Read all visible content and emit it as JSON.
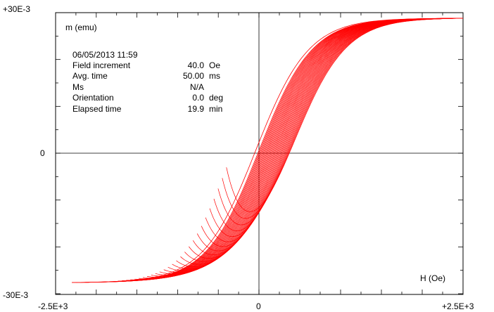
{
  "chart_data": {
    "type": "line",
    "title": "",
    "xlabel": "H (Oe)",
    "ylabel": "m (emu)",
    "xlim": [
      -2500,
      2500
    ],
    "ylim": [
      -0.03,
      0.03
    ],
    "x_tick_labels": [
      "-2.5E+3",
      "0",
      "+2.5E+3"
    ],
    "y_tick_labels": [
      "+30E-3",
      "0",
      "-30E-3"
    ],
    "grid": false,
    "color": "#ff0000",
    "loop": {
      "field_extent": [
        -2300,
        2500
      ],
      "moment_extent": [
        -0.0276,
        0.0288
      ],
      "coercivity_range": [
        0,
        400
      ],
      "remanence_range": [
        0,
        0.011
      ],
      "curve_count": 38
    },
    "info_rows": [
      {
        "label": "06/05/2013  11:59",
        "value": "",
        "unit": ""
      },
      {
        "label": "Field increment",
        "value": "40.0",
        "unit": "Oe"
      },
      {
        "label": "Avg. time",
        "value": "50.00",
        "unit": "ms"
      },
      {
        "label": "Ms",
        "value": "N/A",
        "unit": ""
      },
      {
        "label": "Orientation",
        "value": "0.0",
        "unit": "deg"
      },
      {
        "label": "Elapsed time",
        "value": "19.9",
        "unit": "min"
      }
    ]
  }
}
